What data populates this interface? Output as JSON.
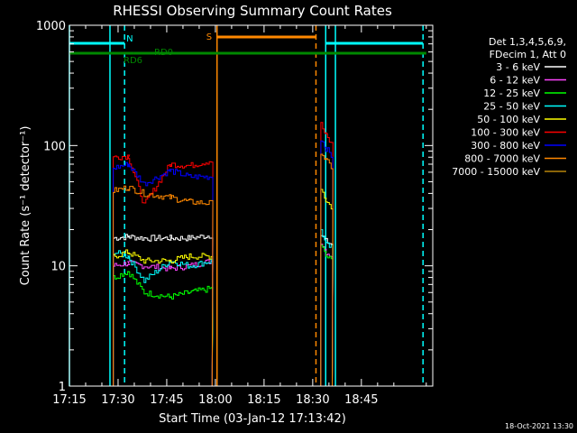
{
  "chart_data": {
    "type": "line",
    "title": "RHESSI Observing Summary Count Rates",
    "xlabel": "Start Time (03-Jan-12 17:13:42)",
    "ylabel": "Count Rate (s⁻¹ detector⁻¹)",
    "y_scale": "log",
    "ylim": [
      1,
      1000
    ],
    "xlim_min": [
      15,
      127
    ],
    "y_ticks": [
      {
        "value": 1,
        "label": "1"
      },
      {
        "value": 10,
        "label": "10"
      },
      {
        "value": 100,
        "label": "100"
      },
      {
        "value": 1000,
        "label": "1000"
      }
    ],
    "x_ticks": [
      {
        "value": 15,
        "label": "17:15"
      },
      {
        "value": 30,
        "label": "17:30"
      },
      {
        "value": 45,
        "label": "17:45"
      },
      {
        "value": 60,
        "label": "18:00"
      },
      {
        "value": 75,
        "label": "18:15"
      },
      {
        "value": 90,
        "label": "18:30"
      },
      {
        "value": 105,
        "label": "18:45"
      }
    ],
    "legend": {
      "position": "right",
      "header": [
        "Det 1,3,4,5,6,9,",
        "FDecim 1, Att 0"
      ]
    },
    "series": [
      {
        "name": "3 - 6 keV",
        "color": "#ffffff",
        "segments": [
          {
            "x": [
              28.5,
              33,
              38,
              46,
              52,
              59
            ],
            "y": [
              17,
              17.5,
              17,
              17,
              17,
              18
            ]
          },
          {
            "x": [
              92.5,
              94,
              96
            ],
            "y": [
              18,
              16,
              15
            ]
          }
        ]
      },
      {
        "name": "6 - 12 keV",
        "color": "#ff44ff",
        "segments": [
          {
            "x": [
              28.5,
              33,
              38,
              46,
              52,
              59
            ],
            "y": [
              10,
              10.5,
              10,
              9.5,
              10,
              11
            ]
          },
          {
            "x": [
              92.5,
              94,
              96
            ],
            "y": [
              16,
              13,
              12
            ]
          }
        ]
      },
      {
        "name": "12 - 25 keV",
        "color": "#00ff00",
        "segments": [
          {
            "x": [
              28.5,
              33,
              38,
              46,
              52,
              59
            ],
            "y": [
              8,
              9,
              6,
              5.5,
              6,
              6.5
            ]
          },
          {
            "x": [
              92.5,
              94,
              96
            ],
            "y": [
              15,
              12,
              11
            ]
          }
        ]
      },
      {
        "name": "25 - 50 keV",
        "color": "#00ffff",
        "segments": [
          {
            "x": [
              28.5,
              33,
              38,
              46,
              52,
              59
            ],
            "y": [
              13,
              12,
              7.5,
              11,
              10,
              11
            ]
          },
          {
            "x": [
              92.5,
              94,
              96
            ],
            "y": [
              20,
              15,
              14
            ]
          }
        ]
      },
      {
        "name": "50 - 100 keV",
        "color": "#ffff00",
        "segments": [
          {
            "x": [
              28.5,
              33,
              38,
              46,
              52,
              59
            ],
            "y": [
              12,
              13,
              11,
              11,
              12,
              12
            ]
          },
          {
            "x": [
              92.5,
              94,
              96
            ],
            "y": [
              45,
              35,
              30
            ]
          }
        ]
      },
      {
        "name": "100 - 300 keV",
        "color": "#ff0000",
        "segments": [
          {
            "x": [
              28.5,
              33,
              38,
              46,
              52,
              59
            ],
            "y": [
              80,
              82,
              32,
              70,
              68,
              75
            ]
          },
          {
            "x": [
              92.5,
              94,
              96
            ],
            "y": [
              150,
              120,
              100
            ]
          }
        ]
      },
      {
        "name": "300 - 800 keV",
        "color": "#0000ff",
        "segments": [
          {
            "x": [
              28.5,
              33,
              38,
              46,
              52,
              59
            ],
            "y": [
              65,
              70,
              48,
              62,
              55,
              55
            ]
          },
          {
            "x": [
              92.5,
              94,
              96
            ],
            "y": [
              115,
              95,
              80
            ]
          }
        ]
      },
      {
        "name": "800 - 7000 keV",
        "color": "#ff8800",
        "segments": [
          {
            "x": [
              28.5,
              33,
              38,
              46,
              52,
              59
            ],
            "y": [
              42,
              45,
              40,
              37,
              34,
              33
            ]
          },
          {
            "x": [
              92.5,
              94,
              96
            ],
            "y": [
              90,
              75,
              65
            ]
          }
        ]
      },
      {
        "name": "7000 - 15000 keV",
        "color": "#b8860b",
        "segments": []
      }
    ],
    "annotations": [
      {
        "label": "N",
        "kind": "night",
        "color": "#00ffff",
        "bar_x": [
          15,
          32
        ],
        "marker_x": 32
      },
      {
        "label": "RD6",
        "kind": "sun",
        "color": "#008800",
        "bar_x": [
          15,
          35
        ]
      },
      {
        "label": "RD0",
        "kind": "sun",
        "color": "#008800",
        "bar_x": [
          35,
          46
        ]
      },
      {
        "label": "",
        "kind": "sun",
        "color": "#008800",
        "bar_x": [
          46,
          125
        ]
      },
      {
        "label": "S",
        "kind": "saa",
        "color": "#ff8800",
        "bar_x": [
          60.5,
          91
        ],
        "marker_x": 91
      },
      {
        "label": "",
        "kind": "night",
        "color": "#00ffff",
        "bar_x": [
          94,
          124
        ],
        "marker_x": 124
      }
    ],
    "vertical_lines": [
      {
        "x": 15,
        "color": "#00ffff",
        "style": "solid"
      },
      {
        "x": 32,
        "color": "#00ffff",
        "style": "dashed"
      },
      {
        "x": 27.5,
        "color": "#00ffff",
        "style": "solid"
      },
      {
        "x": 60.5,
        "color": "#ff8800",
        "style": "solid"
      },
      {
        "x": 91,
        "color": "#ff8800",
        "style": "dashed"
      },
      {
        "x": 94,
        "color": "#00ffff",
        "style": "solid"
      },
      {
        "x": 97,
        "color": "#00ffff",
        "style": "solid"
      },
      {
        "x": 124,
        "color": "#00ffff",
        "style": "dashed"
      }
    ]
  },
  "footer": {
    "timestamp": "18-Oct-2021 13:30"
  }
}
